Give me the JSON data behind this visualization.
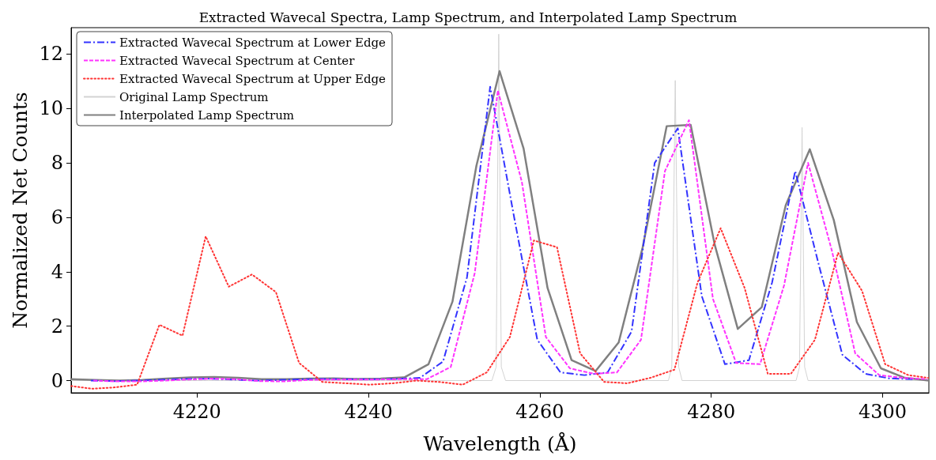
{
  "chart_data": {
    "type": "line",
    "title": "Extracted Wavecal Spectra, Lamp Spectrum, and Interpolated Lamp Spectrum",
    "xlabel": "Wavelength (Å)",
    "ylabel": "Normalized Net Counts",
    "xlim": [
      4205.3,
      4305.4
    ],
    "ylim": [
      -0.45,
      12.97
    ],
    "xticks": [
      4220,
      4240,
      4260,
      4280,
      4300
    ],
    "yticks": [
      0,
      2,
      4,
      6,
      8,
      10,
      12
    ],
    "grid": false,
    "legend": "top left",
    "marker": "none",
    "series": [
      {
        "name": "Extracted Wavecal Spectrum at Lower Edge",
        "color": "#3333ff",
        "line_style": "dashdot",
        "x": [
          4207.6,
          4210.4,
          4213.1,
          4215.8,
          4218.6,
          4221.3,
          4224.1,
          4226.8,
          4229.5,
          4232.3,
          4235.0,
          4237.8,
          4240.5,
          4243.2,
          4246.0,
          4248.7,
          4251.5,
          4254.2,
          4257.0,
          4259.7,
          4262.4,
          4265.2,
          4267.9,
          4270.7,
          4273.4,
          4276.1,
          4278.9,
          4281.6,
          4284.4,
          4287.1,
          4289.8,
          4292.6,
          4295.3,
          4298.0,
          4300.8,
          4303.5
        ],
        "values": [
          0.0,
          -0.02,
          0.0,
          0.03,
          0.06,
          0.07,
          0.04,
          0.0,
          0.02,
          0.05,
          0.06,
          0.05,
          0.05,
          0.06,
          0.1,
          0.7,
          3.8,
          10.8,
          6.0,
          1.5,
          0.3,
          0.2,
          0.3,
          1.8,
          8.0,
          9.27,
          3.1,
          0.6,
          0.75,
          3.6,
          7.7,
          4.2,
          0.95,
          0.25,
          0.08,
          0.05
        ]
      },
      {
        "name": "Extracted Wavecal Spectrum at Center",
        "color": "#ff33ff",
        "line_style": "dashed",
        "x": [
          4207.9,
          4210.7,
          4213.4,
          4216.2,
          4219.0,
          4221.8,
          4224.6,
          4227.3,
          4230.1,
          4232.9,
          4235.7,
          4238.5,
          4241.2,
          4244.0,
          4246.8,
          4249.6,
          4252.4,
          4255.1,
          4257.9,
          4260.7,
          4263.5,
          4266.3,
          4269.0,
          4271.8,
          4274.6,
          4277.4,
          4280.2,
          4282.9,
          4285.7,
          4288.5,
          4291.3,
          4294.1,
          4296.8,
          4299.6,
          4302.4,
          4305.2
        ],
        "values": [
          0.0,
          -0.03,
          -0.03,
          0.0,
          0.04,
          0.07,
          0.05,
          -0.02,
          -0.03,
          0.02,
          0.04,
          0.04,
          0.04,
          0.05,
          0.05,
          0.5,
          3.95,
          10.66,
          7.3,
          1.6,
          0.45,
          0.25,
          0.3,
          1.5,
          7.7,
          9.57,
          3.0,
          0.65,
          0.6,
          3.5,
          8.0,
          4.75,
          1.0,
          0.2,
          0.1,
          0.05
        ]
      },
      {
        "name": "Extracted Wavecal Spectrum at Upper Edge",
        "color": "#ff3333",
        "line_style": "dotted",
        "x": [
          4205.3,
          4207.7,
          4210.4,
          4213.0,
          4215.6,
          4218.3,
          4221.0,
          4223.7,
          4226.4,
          4229.2,
          4231.9,
          4234.6,
          4237.4,
          4240.1,
          4242.8,
          4245.6,
          4248.3,
          4251.0,
          4253.8,
          4256.5,
          4259.3,
          4262.0,
          4264.7,
          4267.5,
          4270.2,
          4272.9,
          4275.7,
          4278.4,
          4281.1,
          4283.9,
          4286.6,
          4289.3,
          4292.1,
          4294.8,
          4297.6,
          4300.3,
          4303.0,
          4305.3
        ],
        "values": [
          -0.2,
          -0.3,
          -0.25,
          -0.15,
          2.05,
          1.65,
          5.3,
          3.45,
          3.9,
          3.25,
          0.65,
          -0.05,
          -0.1,
          -0.15,
          -0.1,
          0.0,
          -0.05,
          -0.15,
          0.3,
          1.6,
          5.15,
          4.9,
          1.0,
          -0.05,
          -0.1,
          0.1,
          0.4,
          3.6,
          5.6,
          3.4,
          0.25,
          0.25,
          1.5,
          4.7,
          3.3,
          0.6,
          0.2,
          0.1
        ]
      },
      {
        "name": "Original Lamp Spectrum",
        "color": "#d3d3d3",
        "line_style": "solid",
        "x": [
          4205.3,
          4230.0,
          4254.4,
          4254.9,
          4255.2,
          4255.5,
          4256.0,
          4275.0,
          4275.4,
          4275.8,
          4276.2,
          4276.6,
          4289.9,
          4290.3,
          4290.6,
          4290.9,
          4291.3,
          4305.4
        ],
        "values": [
          0.0,
          0.0,
          0.0,
          0.5,
          12.73,
          0.5,
          0.0,
          0.0,
          0.5,
          11.03,
          0.5,
          0.0,
          0.0,
          0.5,
          9.3,
          0.5,
          0.0,
          0.0
        ]
      },
      {
        "name": "Interpolated Lamp Spectrum",
        "color": "#808080",
        "line_style": "solid",
        "x": [
          4205.3,
          4208.1,
          4210.9,
          4213.6,
          4216.4,
          4219.2,
          4222.0,
          4224.8,
          4227.5,
          4230.3,
          4233.1,
          4235.9,
          4238.7,
          4241.4,
          4244.2,
          4247.0,
          4249.8,
          4252.6,
          4255.3,
          4258.1,
          4260.9,
          4263.7,
          4266.5,
          4269.2,
          4272.0,
          4274.8,
          4277.6,
          4280.4,
          4283.1,
          4285.9,
          4288.7,
          4291.5,
          4294.3,
          4297.0,
          4299.8,
          4302.6,
          4305.4
        ],
        "values": [
          0.05,
          0.02,
          0.0,
          0.02,
          0.07,
          0.12,
          0.13,
          0.1,
          0.05,
          0.05,
          0.07,
          0.08,
          0.06,
          0.07,
          0.12,
          0.6,
          2.9,
          7.9,
          11.37,
          8.53,
          3.4,
          0.75,
          0.35,
          1.4,
          4.9,
          9.35,
          9.4,
          5.0,
          1.9,
          2.7,
          6.45,
          8.5,
          5.9,
          2.15,
          0.45,
          0.1,
          0.0
        ]
      }
    ]
  }
}
